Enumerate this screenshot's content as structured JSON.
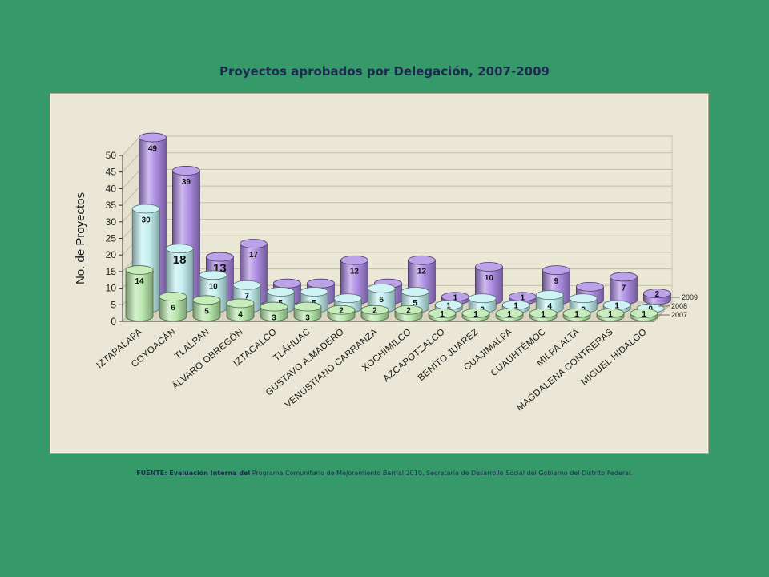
{
  "chart_data": {
    "type": "bar",
    "title": "Proyectos aprobados por Delegación, 2007-2009",
    "ylabel": "No. de Proyectos",
    "xlabel": "",
    "ylim": [
      0,
      50
    ],
    "yticks": [
      "0",
      "5",
      "10",
      "15",
      "20",
      "25",
      "30",
      "35",
      "40",
      "45",
      "50"
    ],
    "grid": true,
    "legend_position": "bottom-right",
    "categories": [
      "IZTAPALAPA",
      "COYOACÁN",
      "TLALPAN",
      "ÁLVARO OBREGÓN",
      "IZTACALCO",
      "TLÁHUAC",
      "GUSTAVO A.MADERO",
      "VENUSTIANO CARRANZA",
      "XOCHIMILCO",
      "AZCAPOTZALCO",
      "BENITO JUÁREZ",
      "CUAJIMALPA",
      "CUAUHTÉMOC",
      "MILPA ALTA",
      "MAGDALENA CONTRERAS",
      "MIGUEL HIDALGO"
    ],
    "series": [
      {
        "name": "2009",
        "color": "#a683e0",
        "values": [
          49,
          39,
          13,
          17,
          5,
          5,
          12,
          5,
          12,
          1,
          10,
          1,
          9,
          4,
          7,
          2
        ]
      },
      {
        "name": "2008",
        "color": "#bfeff0",
        "values": [
          30,
          18,
          10,
          7,
          5,
          5,
          3,
          6,
          5,
          1,
          3,
          1,
          4,
          3,
          1,
          0
        ]
      },
      {
        "name": "2007",
        "color": "#b3e6a6",
        "values": [
          14,
          6,
          5,
          4,
          3,
          3,
          2,
          2,
          2,
          1,
          1,
          1,
          1,
          1,
          1,
          1
        ]
      }
    ]
  },
  "source": {
    "lead": "FUENTE: Evaluación Interna del",
    "rest": " Programa Comunitario de Mejoramiento Barrial 2010, Secretaría de Desarrollo Social del Gobierno del Distrito Federal."
  }
}
